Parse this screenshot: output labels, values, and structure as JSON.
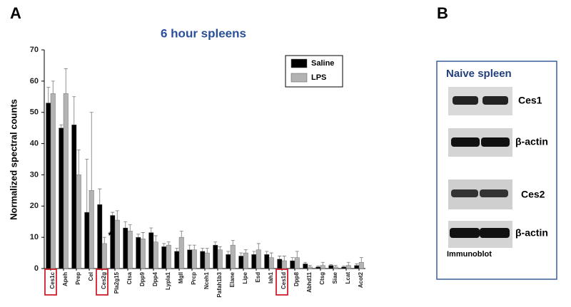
{
  "panels": {
    "a": "A",
    "b": "B"
  },
  "chart_data": {
    "type": "bar",
    "title": "6 hour spleens",
    "y_label": "Normalized spectral counts",
    "categories": [
      "Ces1c",
      "Apeh",
      "Prep",
      "Cel",
      "Ces2g",
      "Pla2g15",
      "Ctsa",
      "Dpp9",
      "Dpp4",
      "Lypla1",
      "Mgll",
      "Prcp",
      "Nceh1",
      "Pafah1b3",
      "Elane",
      "Lipe",
      "Esd",
      "Iah1",
      "Ces1d",
      "Dpp8",
      "Abhd11",
      "Ctsg",
      "Siae",
      "Lcat",
      "Acot2"
    ],
    "series": [
      {
        "name": "Saline",
        "color": "#000000",
        "values": [
          53,
          45,
          46,
          18,
          20.5,
          17,
          13,
          10,
          11.5,
          7,
          5.5,
          6,
          5.5,
          7.5,
          4.5,
          4,
          4.5,
          4.5,
          3,
          2.5,
          1.5,
          0.5,
          1,
          0.5,
          1
        ],
        "errors": [
          5,
          1,
          9,
          17,
          5,
          1,
          2,
          1,
          1.5,
          1,
          1,
          1.5,
          1,
          1,
          1,
          1,
          1,
          1,
          1,
          1,
          0.5,
          0.3,
          0.3,
          0.3,
          0.5
        ]
      },
      {
        "name": "LPS",
        "color": "#b3b3b3",
        "values": [
          56,
          56,
          30,
          25,
          8,
          15.5,
          12,
          9.5,
          8.5,
          7.5,
          10,
          6,
          5,
          6,
          7.5,
          5,
          6,
          3.5,
          2.5,
          3.5,
          0.5,
          1,
          0.5,
          1,
          2
        ],
        "errors": [
          4,
          8,
          8,
          25,
          2,
          3,
          2,
          2,
          2,
          1,
          2,
          1.5,
          1.5,
          1,
          1.5,
          1,
          2,
          1.5,
          1.5,
          2,
          0.5,
          1,
          0.5,
          1,
          1.5
        ]
      }
    ],
    "ylim": [
      0,
      70
    ],
    "yticks": [
      0,
      10,
      20,
      30,
      40,
      50,
      60,
      70
    ],
    "highlighted": [
      "Ces1c",
      "Ces2g",
      "Ces1d"
    ],
    "highlight_color": "#d0202a",
    "annotation": "*",
    "legend": "top-right"
  },
  "blot": {
    "title": "Naive spleen",
    "rows": [
      "Ces1",
      "β-actin",
      "Ces2",
      "β-actin"
    ],
    "caption": "Immunoblot"
  }
}
